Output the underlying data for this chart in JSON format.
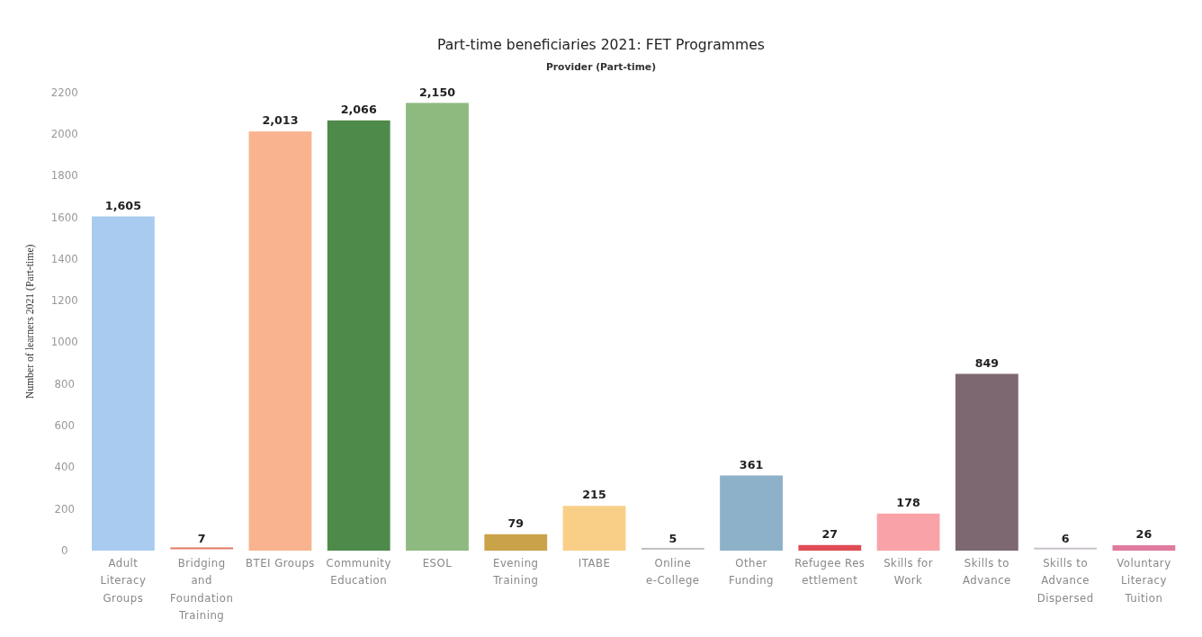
{
  "chart_data": {
    "type": "bar",
    "title": "Part-time beneficiaries 2021: FET Programmes",
    "subtitle": "Provider (Part-time)",
    "ylabel": "Number of learners 2021 (Part-time)",
    "categories": [
      "Adult\nLiteracy\nGroups",
      "Bridging\nand\nFoundation\nTraining",
      "BTEI Groups",
      "Community\nEducation",
      "ESOL",
      "Evening\nTraining",
      "ITABE",
      "Online\ne-College",
      "Other\nFunding",
      "Refugee Res\nettlement",
      "Skills for\nWork",
      "Skills to\nAdvance",
      "Skills to\nAdvance\nDispersed",
      "Voluntary\nLiteracy\nTuition"
    ],
    "values": [
      1605,
      7,
      2013,
      2066,
      2150,
      79,
      215,
      5,
      361,
      27,
      178,
      849,
      6,
      26
    ],
    "colors": [
      "#a9cbef",
      "#e0775f",
      "#f9b48f",
      "#4e8a4a",
      "#8fba7f",
      "#c9a24a",
      "#f9cf87",
      "#bdbdbd",
      "#8cb1c8",
      "#e04c55",
      "#f9a3a8",
      "#7d6872",
      "#c8c0c8",
      "#e07a9e"
    ],
    "value_labels": [
      "1,605",
      "7",
      "2,013",
      "2,066",
      "2,150",
      "79",
      "215",
      "5",
      "361",
      "27",
      "178",
      "849",
      "6",
      "26"
    ],
    "ylim": [
      0,
      2200
    ],
    "yticks": [
      0,
      200,
      400,
      600,
      800,
      1000,
      1200,
      1400,
      1600,
      1800,
      2000,
      2200
    ]
  }
}
